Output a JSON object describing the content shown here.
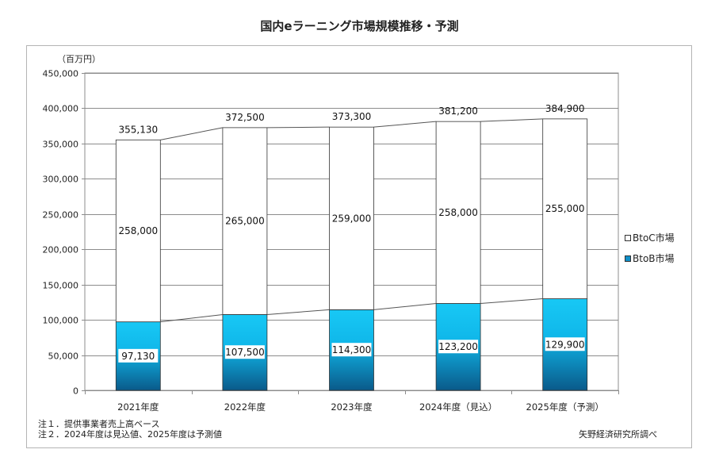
{
  "chart_data": {
    "type": "bar",
    "stacked": true,
    "title": "国内eラーニング市場規模推移・予測",
    "unit_label": "（百万円）",
    "categories": [
      "2021年度",
      "2022年度",
      "2023年度",
      "2024年度（見込）",
      "2025年度（予測）"
    ],
    "series": [
      {
        "name": "BtoB市場",
        "values": [
          97130,
          107500,
          114300,
          123200,
          129900
        ],
        "labels": [
          "97,130",
          "107,500",
          "114,300",
          "123,200",
          "129,900"
        ]
      },
      {
        "name": "BtoC市場",
        "values": [
          258000,
          265000,
          259000,
          258000,
          255000
        ],
        "labels": [
          "258,000",
          "265,000",
          "259,000",
          "258,000",
          "255,000"
        ]
      }
    ],
    "totals": [
      355130,
      372500,
      373300,
      381200,
      384900
    ],
    "total_labels": [
      "355,130",
      "372,500",
      "373,300",
      "381,200",
      "384,900"
    ],
    "ylim": [
      0,
      450000
    ],
    "yticks": [
      0,
      50000,
      100000,
      150000,
      200000,
      250000,
      300000,
      350000,
      400000,
      450000
    ],
    "ytick_labels": [
      "0",
      "50,000",
      "100,000",
      "150,000",
      "200,000",
      "250,000",
      "300,000",
      "350,000",
      "400,000",
      "450,000"
    ],
    "grid": true,
    "legend_position": "right",
    "legend": [
      "BtoC市場",
      "BtoB市場"
    ],
    "colors": {
      "btob_top": "#18c8f5",
      "btob_bottom": "#0a5a8a",
      "btoc": "#ffffff",
      "grid": "#8c8c8c",
      "line": "#555555"
    }
  },
  "notes": {
    "note1": "注１．提供事業者売上高ベース",
    "note2": "注２．2024年度は見込値、2025年度は予測値"
  },
  "source": "矢野経済研究所調べ"
}
